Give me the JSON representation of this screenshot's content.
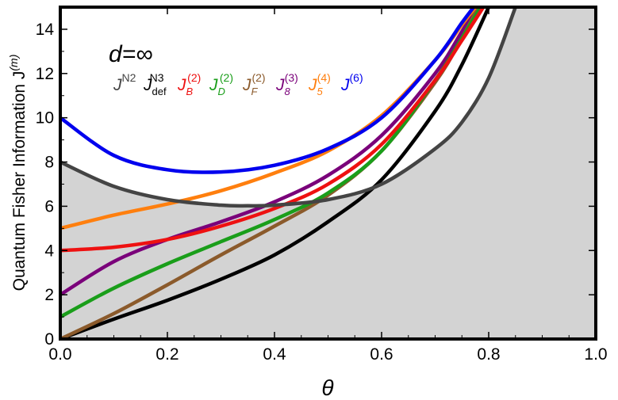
{
  "chart_data": {
    "type": "line",
    "title": "",
    "annotation": "d=∞",
    "xlabel": "θ",
    "ylabel": "Quantum Fisher Information J",
    "ylabel_sup": "(m)",
    "xlim": [
      0,
      1
    ],
    "ylim": [
      0,
      15
    ],
    "xticks": [
      "0.0",
      "0.2",
      "0.4",
      "0.6",
      "0.8",
      "1.0"
    ],
    "yticks": [
      "0",
      "2",
      "4",
      "6",
      "8",
      "10",
      "12",
      "14"
    ],
    "shaded_region": {
      "label": "region below J^N2",
      "color": "#d3d3d3"
    },
    "series": [
      {
        "name": "J^N2",
        "base": "J",
        "sup": "N2",
        "sub": "",
        "color": "#444444",
        "x": [
          0,
          0.1,
          0.2,
          0.3,
          0.35,
          0.4,
          0.5,
          0.6,
          0.7,
          0.75,
          0.8,
          0.85
        ],
        "y": [
          8.0,
          6.9,
          6.3,
          6.05,
          6.02,
          6.05,
          6.3,
          7.0,
          8.6,
          9.8,
          11.8,
          15.0
        ]
      },
      {
        "name": "J^N3_def",
        "base": "J",
        "sup": "N3",
        "sub": "def",
        "color": "#000000",
        "x": [
          0,
          0.1,
          0.2,
          0.3,
          0.4,
          0.5,
          0.6,
          0.7,
          0.75,
          0.8
        ],
        "y": [
          0.0,
          0.9,
          1.75,
          2.7,
          3.8,
          5.3,
          7.2,
          10.3,
          12.4,
          15.0
        ]
      },
      {
        "name": "J_B^(2)",
        "base": "J",
        "sup": "(2)",
        "sub": "B",
        "color": "#ee1111",
        "x": [
          0,
          0.1,
          0.2,
          0.3,
          0.4,
          0.5,
          0.6,
          0.7,
          0.75,
          0.79
        ],
        "y": [
          4.0,
          4.15,
          4.5,
          5.1,
          5.9,
          7.0,
          8.8,
          11.7,
          13.5,
          15.0
        ]
      },
      {
        "name": "J_D^(2)",
        "base": "J",
        "sup": "(2)",
        "sub": "D",
        "color": "#1a9e1a",
        "x": [
          0,
          0.1,
          0.2,
          0.3,
          0.4,
          0.5,
          0.6,
          0.7,
          0.75,
          0.785
        ],
        "y": [
          1.0,
          2.3,
          3.4,
          4.4,
          5.4,
          6.6,
          8.5,
          11.7,
          13.6,
          15.0
        ]
      },
      {
        "name": "J_F^(2)",
        "base": "J",
        "sup": "(2)",
        "sub": "F",
        "color": "#8b5a2b",
        "x": [
          0,
          0.1,
          0.2,
          0.3,
          0.4,
          0.5,
          0.6,
          0.7,
          0.75,
          0.78
        ],
        "y": [
          0.0,
          1.15,
          2.45,
          3.8,
          5.1,
          6.5,
          8.5,
          11.6,
          13.6,
          15.0
        ]
      },
      {
        "name": "J_8^(3)",
        "base": "J",
        "sup": "(3)",
        "sub": "8",
        "color": "#7a007a",
        "x": [
          0,
          0.1,
          0.2,
          0.3,
          0.4,
          0.5,
          0.6,
          0.7,
          0.75,
          0.778
        ],
        "y": [
          2.0,
          3.5,
          4.5,
          5.3,
          6.2,
          7.4,
          9.2,
          12.0,
          13.9,
          15.0
        ]
      },
      {
        "name": "J_5^(4)",
        "base": "J",
        "sup": "(4)",
        "sub": "5",
        "color": "#ff7f0e",
        "x": [
          0,
          0.1,
          0.2,
          0.3,
          0.4,
          0.5,
          0.6,
          0.7,
          0.75,
          0.775
        ],
        "y": [
          5.0,
          5.6,
          6.1,
          6.7,
          7.5,
          8.5,
          10.1,
          12.6,
          14.2,
          15.0
        ]
      },
      {
        "name": "J^(6)",
        "base": "J",
        "sup": "(6)",
        "sub": "",
        "color": "#0000ee",
        "x": [
          0,
          0.1,
          0.2,
          0.3,
          0.4,
          0.5,
          0.6,
          0.7,
          0.75,
          0.772
        ],
        "y": [
          10.0,
          8.3,
          7.65,
          7.55,
          7.85,
          8.6,
          10.0,
          12.6,
          14.3,
          15.0
        ]
      }
    ]
  }
}
